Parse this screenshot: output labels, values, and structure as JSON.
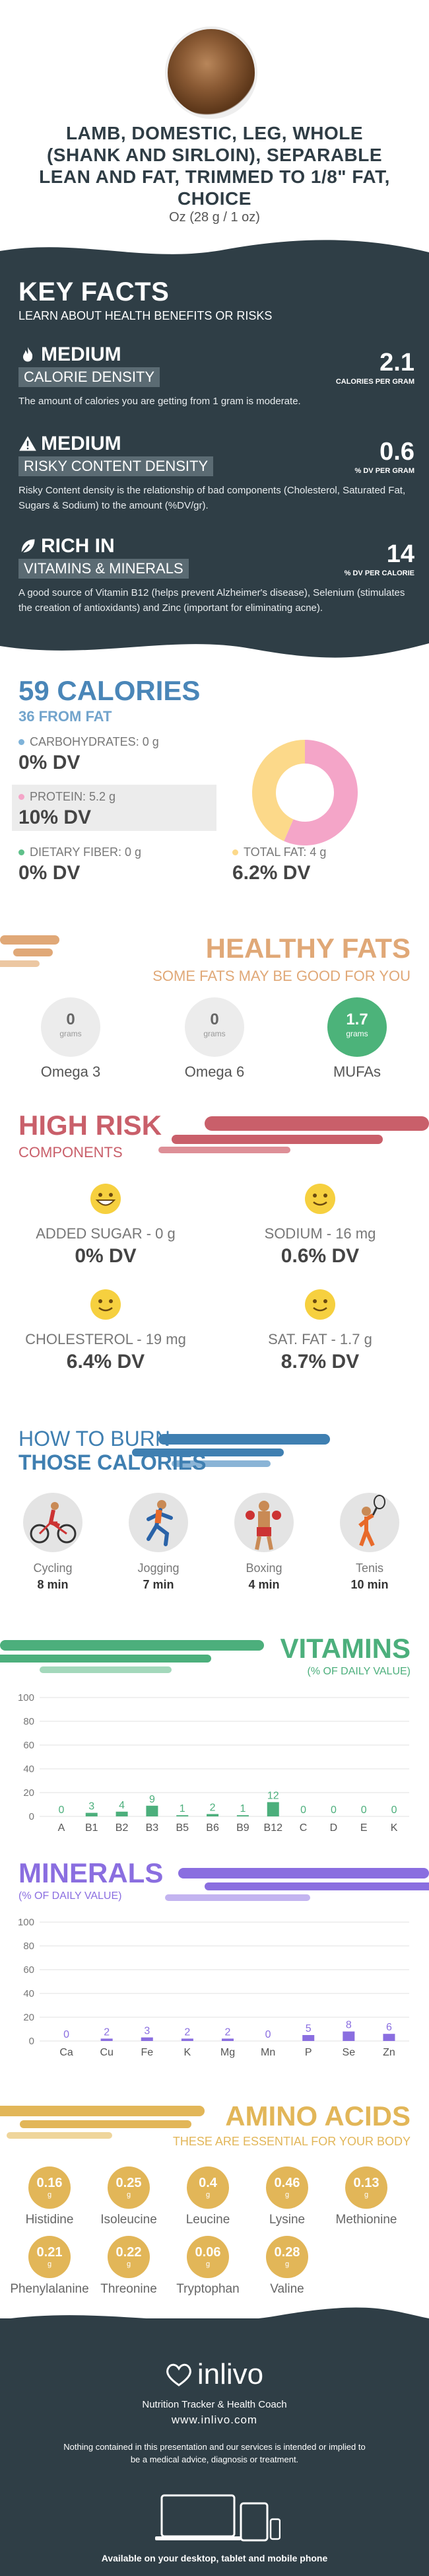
{
  "header": {
    "title": "LAMB, DOMESTIC, LEG, WHOLE (SHANK AND SIRLOIN), SEPARABLE LEAN AND FAT, TRIMMED TO 1/8\" FAT, CHOICE",
    "serving": "Oz (28 g / 1 oz)"
  },
  "key_facts": {
    "title": "KEY FACTS",
    "subtitle": "LEARN ABOUT HEALTH BENEFITS OR RISKS",
    "facts": [
      {
        "level": "MEDIUM",
        "tag": "CALORIE DENSITY",
        "value": "2.1",
        "unit": "CALORIES PER GRAM",
        "desc": "The amount of calories you are getting from 1 gram is moderate.",
        "icon": "flame-icon"
      },
      {
        "level": "MEDIUM",
        "tag": "RISKY CONTENT DENSITY",
        "value": "0.6",
        "unit": "% DV PER GRAM",
        "desc": "Risky Content density is the relationship of bad components (Cholesterol, Saturated Fat, Sugars & Sodium) to the amount (%DV/gr).",
        "icon": "warning-icon"
      },
      {
        "level": "RICH  IN",
        "tag": "VITAMINS & MINERALS",
        "value": "14",
        "unit": "% DV PER CALORIE",
        "desc": "A good source of Vitamin B12 (helps prevent Alzheimer's disease), Selenium (stimulates the creation of antioxidants) and Zinc (important for eliminating acne).",
        "icon": "leaf-icon"
      }
    ]
  },
  "calories": {
    "title": "59 CALORIES",
    "subtitle": "36 FROM FAT",
    "items": [
      {
        "label": "CARBOHYDRATES: 0 g",
        "value": "0% DV",
        "color": "#7fb3d9"
      },
      {
        "label": "PROTEIN: 5.2 g",
        "value": "10% DV",
        "color": "#f4a5c8"
      },
      {
        "label": "DIETARY FIBER: 0 g",
        "value": "0% DV",
        "color": "#5fc08a"
      },
      {
        "label": "TOTAL FAT: 4 g",
        "value": "6.2% DV",
        "color": "#fcd98a"
      }
    ]
  },
  "chart_data": {
    "type": "pie",
    "categories": [
      "PROTEIN",
      "TOTAL FAT",
      "CARBOHYDRATES"
    ],
    "values": [
      5.2,
      4,
      0
    ],
    "colors": [
      "#f4a5c8",
      "#fcd98a",
      "#7fb3d9"
    ]
  },
  "healthy_fats": {
    "title": "HEALTHY FATS",
    "subtitle": "SOME FATS MAY BE GOOD FOR YOU",
    "items": [
      {
        "name": "Omega 3",
        "value": "0",
        "unit": "grams"
      },
      {
        "name": "Omega 6",
        "value": "0",
        "unit": "grams"
      },
      {
        "name": "MUFAs",
        "value": "1.7",
        "unit": "grams"
      }
    ]
  },
  "high_risk": {
    "title": "HIGH RISK",
    "subtitle": "COMPONENTS",
    "items": [
      {
        "label": "ADDED SUGAR - 0 g",
        "value": "0% DV"
      },
      {
        "label": "SODIUM - 16 mg",
        "value": "0.6% DV"
      },
      {
        "label": "CHOLESTEROL - 19 mg",
        "value": "6.4% DV"
      },
      {
        "label": "SAT. FAT - 1.7 g",
        "value": "8.7% DV"
      }
    ]
  },
  "burn": {
    "title_line1": "HOW TO BURN",
    "title_line2": "THOSE CALORIES",
    "activities": [
      {
        "name": "Cycling",
        "time": "8 min",
        "icon": "cycling-icon"
      },
      {
        "name": "Jogging",
        "time": "7 min",
        "icon": "jogging-icon"
      },
      {
        "name": "Boxing",
        "time": "4 min",
        "icon": "boxing-icon"
      },
      {
        "name": "Tenis",
        "time": "10 min",
        "icon": "tennis-icon"
      }
    ]
  },
  "vitamins": {
    "title": "VITAMINS",
    "subtitle": "(% OF DAILY VALUE)",
    "color": "#4caf7c",
    "y_ticks": [
      "100",
      "80",
      "60",
      "40",
      "20",
      "0"
    ],
    "categories": [
      "A",
      "B1",
      "B2",
      "B3",
      "B5",
      "B6",
      "B9",
      "B12",
      "C",
      "D",
      "E",
      "K"
    ],
    "values": [
      0,
      3,
      4,
      9,
      1,
      2,
      1,
      12,
      0,
      0,
      0,
      0
    ],
    "ylim": [
      0,
      100
    ]
  },
  "minerals": {
    "title": "MINERALS",
    "subtitle": "(% OF DAILY VALUE)",
    "color": "#8a6ee0",
    "y_ticks": [
      "100",
      "80",
      "60",
      "40",
      "20",
      "0"
    ],
    "categories": [
      "Ca",
      "Cu",
      "Fe",
      "K",
      "Mg",
      "Mn",
      "P",
      "Se",
      "Zn"
    ],
    "values": [
      0,
      2,
      3,
      2,
      2,
      0,
      5,
      8,
      6
    ],
    "ylim": [
      0,
      100
    ]
  },
  "amino": {
    "title": "AMINO ACIDS",
    "subtitle": "THESE ARE ESSENTIAL FOR YOUR BODY",
    "unit": "g",
    "items": [
      {
        "name": "Histidine",
        "value": "0.16"
      },
      {
        "name": "Isoleucine",
        "value": "0.25"
      },
      {
        "name": "Leucine",
        "value": "0.4"
      },
      {
        "name": "Lysine",
        "value": "0.46"
      },
      {
        "name": "Methionine",
        "value": "0.13"
      },
      {
        "name": "Phenylalanine",
        "value": "0.21"
      },
      {
        "name": "Threonine",
        "value": "0.22"
      },
      {
        "name": "Tryptophan",
        "value": "0.06"
      },
      {
        "name": "Valine",
        "value": "0.28"
      }
    ]
  },
  "footer": {
    "brand": "inlivo",
    "tagline": "Nutrition Tracker & Health Coach",
    "site": "www.inlivo.com",
    "disclaimer": "Nothing contained in this presentation and our services is intended or implied to be a medical advice, diagnosis or treatment.",
    "available": "Available on your desktop, tablet and mobile phone"
  }
}
